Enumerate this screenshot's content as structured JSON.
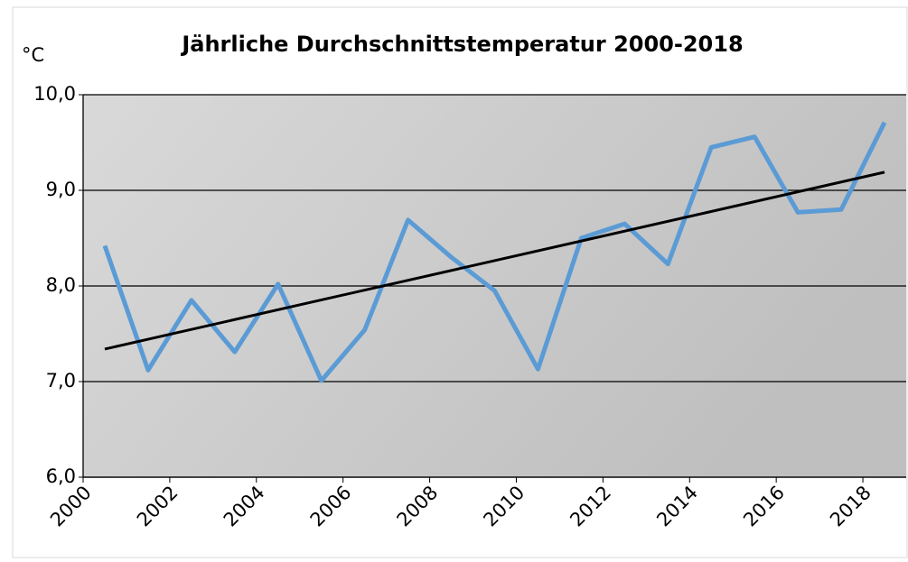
{
  "chart_data": {
    "type": "line",
    "title": "Jährliche Durchschnittstemperatur 2000-2018",
    "y_label": "°C",
    "categories": [
      "2000",
      null,
      "2002",
      null,
      "2004",
      null,
      "2006",
      null,
      "2008",
      null,
      "2010",
      null,
      "2012",
      null,
      "2014",
      null,
      "2016",
      null,
      "2018"
    ],
    "series": [
      {
        "color": "#5b9bd5",
        "values": [
          8.42,
          7.12,
          7.85,
          7.31,
          8.02,
          7.01,
          7.54,
          8.69,
          8.3,
          7.95,
          7.13,
          8.5,
          8.65,
          8.23,
          9.45,
          9.56,
          8.77,
          8.8,
          9.71
        ]
      }
    ],
    "trendline": {
      "color": "#000000",
      "start": 7.34,
      "end": 9.19
    },
    "ylim": [
      6,
      10
    ],
    "yticks": [
      {
        "value": 6,
        "label": "6,0"
      },
      {
        "value": 7,
        "label": "7,0"
      },
      {
        "value": 8,
        "label": "8,0"
      },
      {
        "value": 9,
        "label": "9,0"
      },
      {
        "value": 10,
        "label": "10,0"
      }
    ],
    "grid": true
  }
}
